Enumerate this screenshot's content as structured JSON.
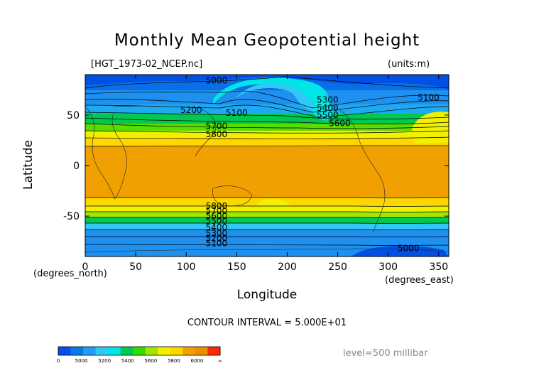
{
  "chart_data": {
    "type": "heatmap",
    "title": "Monthly Mean Geopotential height",
    "file_label": "[HGT_1973-02_NCEP.nc]",
    "units_label": "(units:m)",
    "xlabel": "Longitude",
    "ylabel": "Latitude",
    "x_unit_label": "(degrees_east)",
    "y_unit_label": "(degrees_north)",
    "xlim": [
      0,
      360
    ],
    "ylim": [
      -90,
      90
    ],
    "x_ticks": [
      0,
      50,
      100,
      150,
      200,
      250,
      300,
      350
    ],
    "y_ticks": [
      50,
      0,
      -50
    ],
    "contour_interval_label": "CONTOUR INTERVAL = 5.000E+01",
    "level_label": "level=500 millibar",
    "contour_labels": [
      {
        "text": "5000",
        "lon": 130,
        "lat": 84
      },
      {
        "text": "5100",
        "lon": 150,
        "lat": 52
      },
      {
        "text": "5200",
        "lon": 105,
        "lat": 55
      },
      {
        "text": "5300",
        "lon": 240,
        "lat": 65
      },
      {
        "text": "5400",
        "lon": 240,
        "lat": 57
      },
      {
        "text": "5500",
        "lon": 240,
        "lat": 50
      },
      {
        "text": "5600",
        "lon": 252,
        "lat": 42
      },
      {
        "text": "5700",
        "lon": 130,
        "lat": 39
      },
      {
        "text": "5800",
        "lon": 130,
        "lat": 31
      },
      {
        "text": "5100",
        "lon": 340,
        "lat": 67
      },
      {
        "text": "5800",
        "lon": 130,
        "lat": -40
      },
      {
        "text": "5700",
        "lon": 130,
        "lat": -45
      },
      {
        "text": "5600",
        "lon": 130,
        "lat": -50
      },
      {
        "text": "5500",
        "lon": 130,
        "lat": -55
      },
      {
        "text": "5400",
        "lon": 130,
        "lat": -61
      },
      {
        "text": "5300",
        "lon": 130,
        "lat": -67
      },
      {
        "text": "5200",
        "lon": 130,
        "lat": -72
      },
      {
        "text": "5100",
        "lon": 130,
        "lat": -77
      },
      {
        "text": "5000",
        "lon": 320,
        "lat": -82
      }
    ],
    "colorbar": {
      "colors": [
        "#0050e6",
        "#0a78e6",
        "#1e9ff0",
        "#32c8f5",
        "#00e6e6",
        "#00c850",
        "#32dc00",
        "#a0e600",
        "#f0f000",
        "#ffd700",
        "#f0a000",
        "#f08c00",
        "#ff2800"
      ],
      "tick_labels": [
        "0",
        "5000",
        "5200",
        "5400",
        "5600",
        "5800",
        "6000",
        "∞"
      ]
    }
  }
}
